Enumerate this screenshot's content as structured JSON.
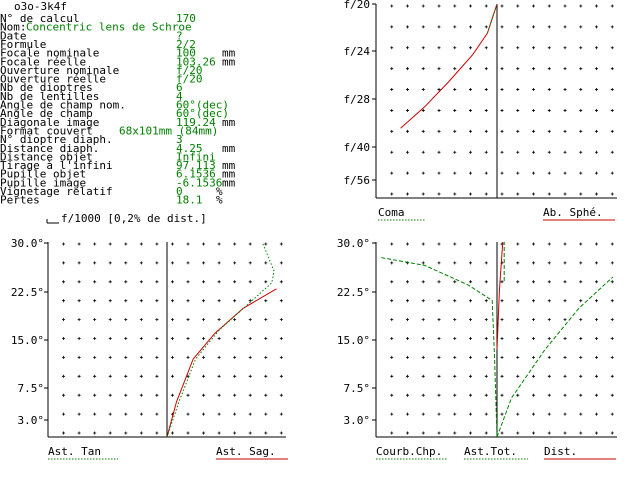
{
  "window": {
    "title": "o3o-3k4f"
  },
  "info_rows": [
    {
      "label": "N° de calcul",
      "value": "170",
      "unit": ""
    },
    {
      "label": "Nom:",
      "value": "Concentric lens de Schroe",
      "unit": ""
    },
    {
      "label": "Date",
      "value": "?",
      "unit": ""
    },
    {
      "label": "Formule",
      "value": "2/2",
      "unit": ""
    },
    {
      "label": "Focale nominale",
      "value": "100",
      "unit": "mm"
    },
    {
      "label": "Focale réelle",
      "value": "103.26",
      "unit": "mm"
    },
    {
      "label": "Ouverture nominale",
      "value": "f/20",
      "unit": ""
    },
    {
      "label": "Ouverture réelle",
      "value": "f/20",
      "unit": ""
    },
    {
      "label": "Nb de dioptres",
      "value": "6",
      "unit": ""
    },
    {
      "label": "Nb de lentilles",
      "value": "4",
      "unit": ""
    },
    {
      "label": "Angle de champ nom.",
      "value": "60°(dec)",
      "unit": ""
    },
    {
      "label": "Angle de champ",
      "value": "60°(dec)",
      "unit": ""
    },
    {
      "label": "Diagonale image",
      "value": "119.24",
      "unit": "mm"
    },
    {
      "label": "Format couvert",
      "value": "68x101mm (84mm)",
      "unit": ""
    },
    {
      "label": "N° dioptre diaph.",
      "value": "3",
      "unit": ""
    },
    {
      "label": "Distance diaph.",
      "value": "4.25",
      "unit": "mm"
    },
    {
      "label": "Distance objet",
      "value": "Infini",
      "unit": ""
    },
    {
      "label": "Tirage à l'infini",
      "value": "97.113",
      "unit": "mm"
    },
    {
      "label": "Pupille objet",
      "value": "6.1536",
      "unit": "mm"
    },
    {
      "label": "Pupille image",
      "value": "-6.1536",
      "unit": "mm"
    },
    {
      "label": "Vignetage relatif",
      "value": "0",
      "unit": "%"
    },
    {
      "label": "Pertes",
      "value": "18.1",
      "unit": "%"
    }
  ],
  "scale_note": "f/1000 [0,2% de dist.]",
  "colors": {
    "text": "#000000",
    "value": "#008000",
    "red_curve": "#cc0000",
    "green_curve": "#008000",
    "grid": "#000000"
  },
  "chart_data": [
    {
      "type": "line",
      "name": "spherical-coma",
      "y_ticks": [
        "f/20",
        "f/24",
        "f/28",
        "f/40",
        "f/56"
      ],
      "legend": [
        {
          "label": "Coma",
          "color": "#008000",
          "style": "dotted"
        },
        {
          "label": "Ab. Sphé.",
          "color": "#cc0000",
          "style": "solid"
        }
      ],
      "series": [
        {
          "color": "#cc0000",
          "style": "solid",
          "points": [
            [
              -2.0,
              0.36
            ],
            [
              -1.5,
              0.47
            ],
            [
              -1.0,
              0.6
            ],
            [
              -0.5,
              0.74
            ],
            [
              -0.2,
              0.85
            ],
            [
              0.0,
              1.0
            ]
          ]
        },
        {
          "color": "#008000",
          "style": "dotted",
          "points": [
            [
              -0.2,
              0.85
            ],
            [
              0.0,
              1.0
            ]
          ]
        }
      ]
    },
    {
      "type": "line",
      "name": "astigmatism",
      "y_ticks": [
        "30.0°",
        "22.5°",
        "15.0°",
        "7.5°",
        "3.0°"
      ],
      "legend": [
        {
          "label": "Ast. Tan",
          "color": "#008000",
          "style": "dotted"
        },
        {
          "label": "Ast. Sag.",
          "color": "#cc0000",
          "style": "solid"
        }
      ],
      "series": [
        {
          "color": "#cc0000",
          "style": "solid",
          "points": [
            [
              0.0,
              0.0
            ],
            [
              0.2,
              0.18
            ],
            [
              0.55,
              0.4
            ],
            [
              1.0,
              0.53
            ],
            [
              1.6,
              0.66
            ],
            [
              2.3,
              0.76
            ]
          ]
        },
        {
          "color": "#008000",
          "style": "dotted",
          "points": [
            [
              0.0,
              0.0
            ],
            [
              0.25,
              0.18
            ],
            [
              0.6,
              0.4
            ],
            [
              1.1,
              0.55
            ],
            [
              1.7,
              0.68
            ],
            [
              2.2,
              0.79
            ],
            [
              2.25,
              0.85
            ],
            [
              2.0,
              1.0
            ]
          ]
        }
      ]
    },
    {
      "type": "line",
      "name": "curvature-distortion",
      "y_ticks": [
        "30.0°",
        "22.5°",
        "15.0°",
        "7.5°",
        "3.0°"
      ],
      "legend": [
        {
          "label": "Courb.Chp.",
          "color": "#008000",
          "style": "dotted"
        },
        {
          "label": "Ast.Tot.",
          "color": "#008000",
          "style": "dotted"
        },
        {
          "label": "Dist.",
          "color": "#cc0000",
          "style": "solid"
        }
      ],
      "series": [
        {
          "color": "#008000",
          "style": "dashed",
          "points": [
            [
              -2.4,
              0.92
            ],
            [
              -1.5,
              0.88
            ],
            [
              -0.6,
              0.78
            ],
            [
              -0.1,
              0.7
            ],
            [
              -0.05,
              0.4
            ],
            [
              0.0,
              0.0
            ]
          ]
        },
        {
          "color": "#008000",
          "style": "dashed",
          "points": [
            [
              0.0,
              0.0
            ],
            [
              0.3,
              0.2
            ],
            [
              1.0,
              0.45
            ],
            [
              1.7,
              0.66
            ],
            [
              2.4,
              0.82
            ]
          ]
        },
        {
          "color": "#cc0000",
          "style": "solid",
          "points": [
            [
              0.0,
              0.45
            ],
            [
              0.05,
              0.75
            ],
            [
              0.1,
              0.93
            ],
            [
              0.12,
              1.0
            ]
          ]
        },
        {
          "color": "#008000",
          "style": "dashed",
          "points": [
            [
              0.15,
              0.8
            ],
            [
              0.15,
              1.0
            ]
          ]
        }
      ]
    }
  ]
}
